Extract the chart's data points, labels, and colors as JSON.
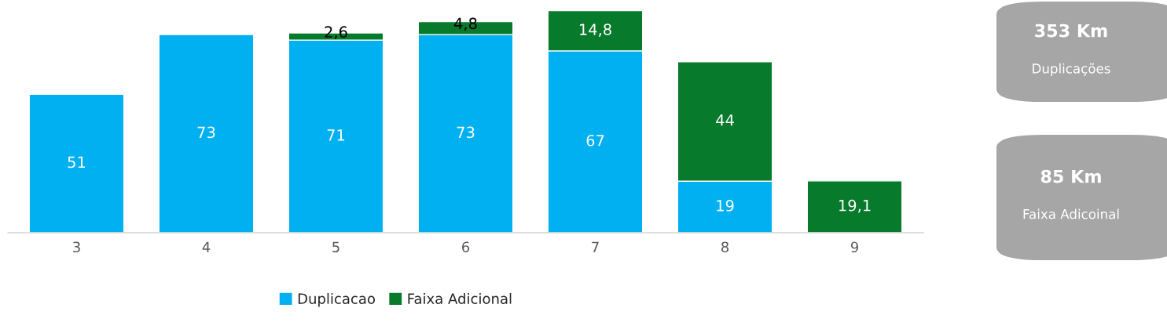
{
  "chart_data": [
    {
      "type": "bar",
      "stacked": true,
      "legend": "bottom",
      "grid": false,
      "categories": [
        "3",
        "4",
        "5",
        "6",
        "7",
        "8",
        "9"
      ],
      "series": [
        {
          "name": "Duplicacao",
          "color": "#00b0f0",
          "values": [
            51,
            73,
            71,
            73,
            67,
            19,
            null
          ],
          "value_labels": [
            "51",
            "73",
            "71",
            "73",
            "67",
            "19",
            null
          ]
        },
        {
          "name": "Faixa Adicional",
          "color": "#087a2c",
          "values": [
            null,
            null,
            2.6,
            4.8,
            14.8,
            44,
            19.1
          ],
          "value_labels": [
            null,
            null,
            "2,6",
            "4,8",
            "14,8",
            "44",
            "19,1"
          ]
        }
      ]
    },
    {
      "type": "other",
      "annotations": [
        "353 Km",
        "Duplicações",
        "85 Km",
        "Faixa Adicoinal"
      ]
    }
  ]
}
